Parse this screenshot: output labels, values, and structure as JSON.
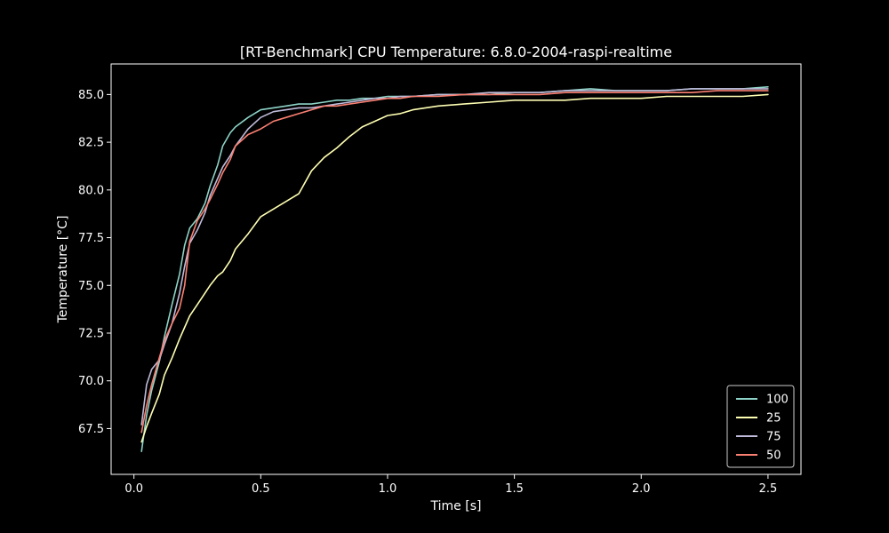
{
  "chart_data": {
    "type": "line",
    "title": "[RT-Benchmark] CPU Temperature: 6.8.0-2004-raspi-realtime",
    "xlabel": "Time [s]",
    "ylabel": "Temperature [°C]",
    "xlim": [
      -0.09,
      2.63
    ],
    "ylim": [
      65.1,
      86.6
    ],
    "xticks": [
      0.0,
      0.5,
      1.0,
      1.5,
      2.0,
      2.5
    ],
    "xtick_labels": [
      "0.0",
      "0.5",
      "1.0",
      "1.5",
      "2.0",
      "2.5"
    ],
    "yticks": [
      67.5,
      70.0,
      72.5,
      75.0,
      77.5,
      80.0,
      82.5,
      85.0
    ],
    "ytick_labels": [
      "67.5",
      "70.0",
      "72.5",
      "75.0",
      "77.5",
      "80.0",
      "82.5",
      "85.0"
    ],
    "grid": false,
    "legend_position": "lower-right",
    "background": "#000000",
    "x": [
      0.03,
      0.05,
      0.07,
      0.1,
      0.12,
      0.15,
      0.18,
      0.2,
      0.22,
      0.25,
      0.28,
      0.3,
      0.33,
      0.35,
      0.38,
      0.4,
      0.45,
      0.5,
      0.55,
      0.6,
      0.65,
      0.7,
      0.75,
      0.8,
      0.85,
      0.9,
      0.95,
      1.0,
      1.05,
      1.1,
      1.2,
      1.3,
      1.4,
      1.5,
      1.6,
      1.7,
      1.8,
      1.9,
      2.0,
      2.1,
      2.2,
      2.3,
      2.4,
      2.5
    ],
    "series": [
      {
        "name": "100",
        "color": "#8dd3c7",
        "values": [
          66.3,
          68.2,
          69.5,
          71.0,
          72.3,
          74.0,
          75.6,
          77.1,
          78.0,
          78.5,
          79.3,
          80.2,
          81.3,
          82.3,
          83.0,
          83.3,
          83.8,
          84.2,
          84.3,
          84.4,
          84.5,
          84.5,
          84.6,
          84.7,
          84.7,
          84.8,
          84.8,
          84.9,
          84.9,
          84.9,
          85.0,
          85.0,
          85.0,
          85.1,
          85.1,
          85.2,
          85.3,
          85.2,
          85.2,
          85.2,
          85.3,
          85.3,
          85.3,
          85.4
        ]
      },
      {
        "name": "25",
        "color": "#ffffb3",
        "values": [
          66.8,
          67.6,
          68.3,
          69.3,
          70.3,
          71.2,
          72.2,
          72.8,
          73.4,
          74.0,
          74.6,
          75.0,
          75.5,
          75.7,
          76.3,
          76.9,
          77.7,
          78.6,
          79.0,
          79.4,
          79.8,
          81.0,
          81.7,
          82.2,
          82.8,
          83.3,
          83.6,
          83.9,
          84.0,
          84.2,
          84.4,
          84.5,
          84.6,
          84.7,
          84.7,
          84.7,
          84.8,
          84.8,
          84.8,
          84.9,
          84.9,
          84.9,
          84.9,
          85.0
        ]
      },
      {
        "name": "75",
        "color": "#bebada",
        "values": [
          67.7,
          69.8,
          70.6,
          71.1,
          71.9,
          73.0,
          74.6,
          76.0,
          77.2,
          77.9,
          78.8,
          79.7,
          80.6,
          81.2,
          81.8,
          82.3,
          83.2,
          83.8,
          84.1,
          84.2,
          84.3,
          84.3,
          84.4,
          84.5,
          84.6,
          84.7,
          84.8,
          84.8,
          84.9,
          84.9,
          85.0,
          85.0,
          85.1,
          85.1,
          85.1,
          85.2,
          85.2,
          85.2,
          85.2,
          85.2,
          85.3,
          85.3,
          85.3,
          85.3
        ]
      },
      {
        "name": "50",
        "color": "#fb8072",
        "values": [
          67.3,
          68.7,
          69.8,
          71.2,
          72.1,
          73.0,
          73.8,
          75.0,
          77.3,
          78.4,
          79.0,
          79.5,
          80.3,
          80.9,
          81.6,
          82.3,
          82.9,
          83.2,
          83.6,
          83.8,
          84.0,
          84.2,
          84.4,
          84.4,
          84.5,
          84.6,
          84.7,
          84.8,
          84.8,
          84.9,
          84.9,
          85.0,
          85.0,
          85.0,
          85.0,
          85.1,
          85.1,
          85.1,
          85.1,
          85.1,
          85.1,
          85.2,
          85.2,
          85.2
        ]
      }
    ]
  }
}
